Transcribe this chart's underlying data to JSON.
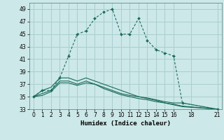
{
  "xlabel": "Humidex (Indice chaleur)",
  "background_color": "#cce8e8",
  "grid_color": "#aacece",
  "line_color": "#1a6b5a",
  "xlim": [
    -0.5,
    21.5
  ],
  "ylim": [
    33,
    50
  ],
  "yticks": [
    33,
    35,
    37,
    39,
    41,
    43,
    45,
    47,
    49
  ],
  "xticks": [
    0,
    1,
    2,
    3,
    4,
    5,
    6,
    7,
    8,
    9,
    10,
    11,
    12,
    13,
    14,
    15,
    16,
    18,
    21
  ],
  "series": [
    {
      "x": [
        0,
        1,
        2,
        3,
        4,
        5,
        6,
        7,
        8,
        9,
        10,
        11,
        12,
        13,
        14,
        15,
        16,
        17,
        21
      ],
      "y": [
        35,
        36,
        36,
        38,
        41.5,
        45,
        45.5,
        47.5,
        48.5,
        49,
        45,
        45,
        47.5,
        44,
        42.5,
        42,
        41.5,
        34,
        33
      ],
      "has_markers": true
    },
    {
      "x": [
        0,
        1,
        2,
        3,
        4,
        5,
        6,
        7,
        8,
        9,
        10,
        11,
        12,
        13,
        14,
        15,
        16,
        17,
        21
      ],
      "y": [
        35,
        36,
        36.5,
        38,
        38,
        37.5,
        38,
        37.5,
        37,
        36.5,
        36,
        35.5,
        35,
        34.8,
        34.5,
        34.2,
        34,
        34,
        33
      ],
      "has_markers": false
    },
    {
      "x": [
        0,
        1,
        2,
        3,
        4,
        5,
        6,
        7,
        8,
        9,
        10,
        11,
        12,
        13,
        14,
        15,
        16,
        17,
        21
      ],
      "y": [
        35,
        35.5,
        36,
        37.5,
        37.5,
        37,
        37.5,
        37,
        36.5,
        36,
        35.5,
        35.2,
        35,
        34.7,
        34.4,
        34,
        33.8,
        33.5,
        33
      ],
      "has_markers": false
    },
    {
      "x": [
        0,
        1,
        2,
        3,
        4,
        5,
        6,
        7,
        8,
        9,
        10,
        11,
        12,
        13,
        14,
        15,
        16,
        17,
        21
      ],
      "y": [
        35,
        35.2,
        35.8,
        37.2,
        37.2,
        36.8,
        37.2,
        37,
        36.3,
        35.8,
        35.3,
        35.0,
        34.7,
        34.5,
        34.2,
        34.0,
        33.7,
        33.4,
        33
      ],
      "has_markers": false
    }
  ]
}
